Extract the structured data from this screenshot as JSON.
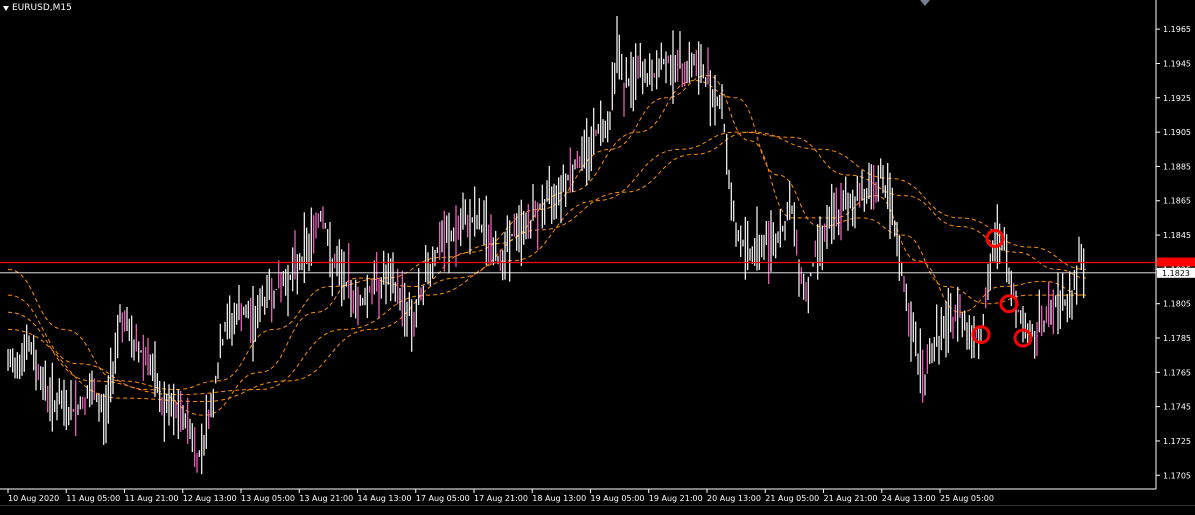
{
  "window": {
    "title": "EURUSD,M15"
  },
  "colors": {
    "background": "#000000",
    "candle_bull": "#ffffff",
    "candle_bear": "#ff66cc",
    "moving_average": "#ff8c00",
    "horizontal_line": "#ff0000",
    "current_price_line": "#ffffff",
    "marker_circle": "#ff0000",
    "axis": "#ffffff"
  },
  "chart_data": {
    "type": "line",
    "symbol": "EURUSD",
    "timeframe": "M15",
    "ylim": [
      1.17,
      1.1975
    ],
    "y_ticks": [
      "1.1965",
      "1.1945",
      "1.1925",
      "1.1905",
      "1.1885",
      "1.1865",
      "1.1845",
      "1.1825",
      "1.1805",
      "1.1785",
      "1.1765",
      "1.1745",
      "1.1725",
      "1.1705"
    ],
    "y_tick_values": [
      1.1965,
      1.1945,
      1.1925,
      1.1905,
      1.1885,
      1.1865,
      1.1845,
      1.1825,
      1.1805,
      1.1785,
      1.1765,
      1.1745,
      1.1725,
      1.1705
    ],
    "x_ticks": [
      "10 Aug 2020",
      "11 Aug 05:00",
      "11 Aug 21:00",
      "12 Aug 13:00",
      "13 Aug 05:00",
      "13 Aug 21:00",
      "14 Aug 13:00",
      "17 Aug 05:00",
      "17 Aug 21:00",
      "18 Aug 13:00",
      "19 Aug 05:00",
      "19 Aug 21:00",
      "20 Aug 13:00",
      "21 Aug 05:00",
      "21 Aug 21:00",
      "24 Aug 13:00",
      "25 Aug 05:00"
    ],
    "current_price": "1.1823",
    "current_price_value": 1.1823,
    "horizontal_line_value": 1.1829,
    "price_path": [
      [
        0,
        1.1768
      ],
      [
        3,
        1.178
      ],
      [
        6,
        1.175
      ],
      [
        9,
        1.1742
      ],
      [
        12,
        1.1752
      ],
      [
        14,
        1.174
      ],
      [
        16,
        1.18
      ],
      [
        18,
        1.178
      ],
      [
        20,
        1.1775
      ],
      [
        22,
        1.1745
      ],
      [
        24,
        1.174
      ],
      [
        26,
        1.1735
      ],
      [
        27,
        1.1712
      ],
      [
        29,
        1.1745
      ],
      [
        31,
        1.179
      ],
      [
        33,
        1.18
      ],
      [
        35,
        1.1795
      ],
      [
        37,
        1.181
      ],
      [
        39,
        1.1815
      ],
      [
        41,
        1.1825
      ],
      [
        43,
        1.184
      ],
      [
        45,
        1.186
      ],
      [
        46,
        1.183
      ],
      [
        48,
        1.182
      ],
      [
        50,
        1.1805
      ],
      [
        52,
        1.1815
      ],
      [
        54,
        1.182
      ],
      [
        56,
        1.181
      ],
      [
        58,
        1.1795
      ],
      [
        60,
        1.1825
      ],
      [
        62,
        1.184
      ],
      [
        64,
        1.1845
      ],
      [
        66,
        1.1855
      ],
      [
        68,
        1.185
      ],
      [
        70,
        1.183
      ],
      [
        72,
        1.1845
      ],
      [
        74,
        1.185
      ],
      [
        76,
        1.186
      ],
      [
        78,
        1.187
      ],
      [
        80,
        1.188
      ],
      [
        82,
        1.189
      ],
      [
        84,
        1.1905
      ],
      [
        86,
        1.1915
      ],
      [
        87,
        1.196
      ],
      [
        88,
        1.193
      ],
      [
        90,
        1.194
      ],
      [
        92,
        1.1935
      ],
      [
        94,
        1.1948
      ],
      [
        96,
        1.1942
      ],
      [
        98,
        1.1945
      ],
      [
        100,
        1.1935
      ],
      [
        102,
        1.192
      ],
      [
        103,
        1.188
      ],
      [
        104,
        1.1845
      ],
      [
        106,
        1.1835
      ],
      [
        108,
        1.184
      ],
      [
        110,
        1.1845
      ],
      [
        112,
        1.186
      ],
      [
        113,
        1.183
      ],
      [
        114,
        1.181
      ],
      [
        116,
        1.1845
      ],
      [
        118,
        1.1855
      ],
      [
        120,
        1.1862
      ],
      [
        122,
        1.187
      ],
      [
        124,
        1.1875
      ],
      [
        125,
        1.188
      ],
      [
        126,
        1.186
      ],
      [
        127,
        1.184
      ],
      [
        128,
        1.1815
      ],
      [
        129,
        1.179
      ],
      [
        130,
        1.1775
      ],
      [
        131,
        1.176
      ],
      [
        132,
        1.178
      ],
      [
        134,
        1.179
      ],
      [
        136,
        1.18
      ],
      [
        138,
        1.1785
      ],
      [
        139,
        1.179
      ],
      [
        140,
        1.181
      ],
      [
        141,
        1.1843
      ],
      [
        142,
        1.1845
      ],
      [
        143,
        1.182
      ],
      [
        144,
        1.1805
      ],
      [
        145,
        1.1795
      ],
      [
        146,
        1.1785
      ],
      [
        148,
        1.1795
      ],
      [
        150,
        1.1805
      ],
      [
        152,
        1.181
      ],
      [
        153,
        1.183
      ],
      [
        154,
        1.1823
      ]
    ],
    "moving_averages": [
      {
        "values": [
          [
            0,
            1.1825
          ],
          [
            8,
            1.179
          ],
          [
            16,
            1.176
          ],
          [
            24,
            1.1755
          ],
          [
            30,
            1.176
          ],
          [
            38,
            1.179
          ],
          [
            46,
            1.1815
          ],
          [
            54,
            1.182
          ],
          [
            62,
            1.1832
          ],
          [
            70,
            1.184
          ],
          [
            80,
            1.187
          ],
          [
            90,
            1.1905
          ],
          [
            98,
            1.1935
          ],
          [
            104,
            1.1925
          ],
          [
            110,
            1.188
          ],
          [
            116,
            1.185
          ],
          [
            122,
            1.1855
          ],
          [
            128,
            1.1845
          ],
          [
            134,
            1.1815
          ],
          [
            140,
            1.1805
          ],
          [
            146,
            1.181
          ],
          [
            154,
            1.181
          ]
        ]
      },
      {
        "values": [
          [
            0,
            1.181
          ],
          [
            10,
            1.177
          ],
          [
            20,
            1.1755
          ],
          [
            28,
            1.174
          ],
          [
            36,
            1.1765
          ],
          [
            44,
            1.18
          ],
          [
            50,
            1.182
          ],
          [
            58,
            1.1815
          ],
          [
            66,
            1.1835
          ],
          [
            76,
            1.186
          ],
          [
            86,
            1.1895
          ],
          [
            94,
            1.1925
          ],
          [
            100,
            1.1938
          ],
          [
            106,
            1.19
          ],
          [
            112,
            1.1855
          ],
          [
            118,
            1.1855
          ],
          [
            124,
            1.1868
          ],
          [
            130,
            1.183
          ],
          [
            136,
            1.18
          ],
          [
            142,
            1.1815
          ],
          [
            148,
            1.1818
          ],
          [
            154,
            1.181
          ]
        ]
      },
      {
        "values": [
          [
            0,
            1.18
          ],
          [
            12,
            1.176
          ],
          [
            24,
            1.1752
          ],
          [
            36,
            1.1755
          ],
          [
            48,
            1.179
          ],
          [
            60,
            1.181
          ],
          [
            72,
            1.183
          ],
          [
            84,
            1.1865
          ],
          [
            96,
            1.1895
          ],
          [
            104,
            1.1905
          ],
          [
            112,
            1.1902
          ],
          [
            120,
            1.188
          ],
          [
            128,
            1.1868
          ],
          [
            136,
            1.185
          ],
          [
            144,
            1.1835
          ],
          [
            150,
            1.1825
          ],
          [
            154,
            1.182
          ]
        ]
      },
      {
        "values": [
          [
            0,
            1.179
          ],
          [
            16,
            1.175
          ],
          [
            28,
            1.1748
          ],
          [
            40,
            1.176
          ],
          [
            52,
            1.179
          ],
          [
            64,
            1.182
          ],
          [
            76,
            1.1848
          ],
          [
            88,
            1.187
          ],
          [
            98,
            1.1892
          ],
          [
            106,
            1.1905
          ],
          [
            116,
            1.1895
          ],
          [
            126,
            1.1878
          ],
          [
            136,
            1.1855
          ],
          [
            146,
            1.1838
          ],
          [
            154,
            1.1825
          ]
        ]
      }
    ],
    "circle_markers": [
      {
        "x": 139,
        "y": 1.1787
      },
      {
        "x": 141,
        "y": 1.1843
      },
      {
        "x": 143,
        "y": 1.1805
      },
      {
        "x": 145,
        "y": 1.1785
      }
    ],
    "x_range": [
      0,
      164
    ]
  }
}
